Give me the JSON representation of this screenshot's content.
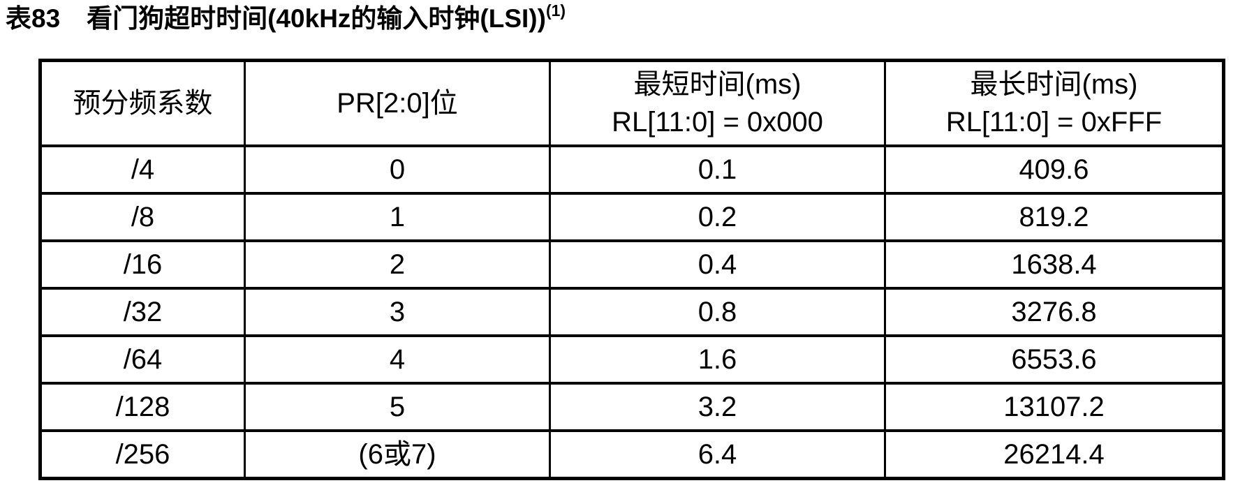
{
  "page": {
    "table_label": "表83",
    "title": "看门狗超时时间(40kHz的输入时钟(LSI))",
    "footnote_marker": "(1)"
  },
  "table": {
    "columns": [
      {
        "label": "预分频系数",
        "sublabel": ""
      },
      {
        "label": "PR[2:0]位",
        "sublabel": ""
      },
      {
        "label": "最短时间(ms)",
        "sublabel": "RL[11:0] = 0x000"
      },
      {
        "label": "最长时间(ms)",
        "sublabel": "RL[11:0] = 0xFFF"
      }
    ],
    "rows": [
      [
        "/4",
        "0",
        "0.1",
        "409.6"
      ],
      [
        "/8",
        "1",
        "0.2",
        "819.2"
      ],
      [
        "/16",
        "2",
        "0.4",
        "1638.4"
      ],
      [
        "/32",
        "3",
        "0.8",
        "3276.8"
      ],
      [
        "/64",
        "4",
        "1.6",
        "6553.6"
      ],
      [
        "/128",
        "5",
        "3.2",
        "13107.2"
      ],
      [
        "/256",
        "(6或7)",
        "6.4",
        "26214.4"
      ]
    ]
  },
  "colors": {
    "text": "#000000",
    "border": "#000000",
    "background": "#ffffff"
  },
  "chart_data": {
    "type": "table",
    "title": "表83 看门狗超时时间(40kHz的输入时钟(LSI))(1)",
    "columns": [
      "预分频系数",
      "PR[2:0]位",
      "最短时间(ms) RL[11:0] = 0x000",
      "最长时间(ms) RL[11:0] = 0xFFF"
    ],
    "rows": [
      [
        "/4",
        "0",
        0.1,
        409.6
      ],
      [
        "/8",
        "1",
        0.2,
        819.2
      ],
      [
        "/16",
        "2",
        0.4,
        1638.4
      ],
      [
        "/32",
        "3",
        0.8,
        3276.8
      ],
      [
        "/64",
        "4",
        1.6,
        6553.6
      ],
      [
        "/128",
        "5",
        3.2,
        13107.2
      ],
      [
        "/256",
        "(6或7)",
        6.4,
        26214.4
      ]
    ]
  }
}
